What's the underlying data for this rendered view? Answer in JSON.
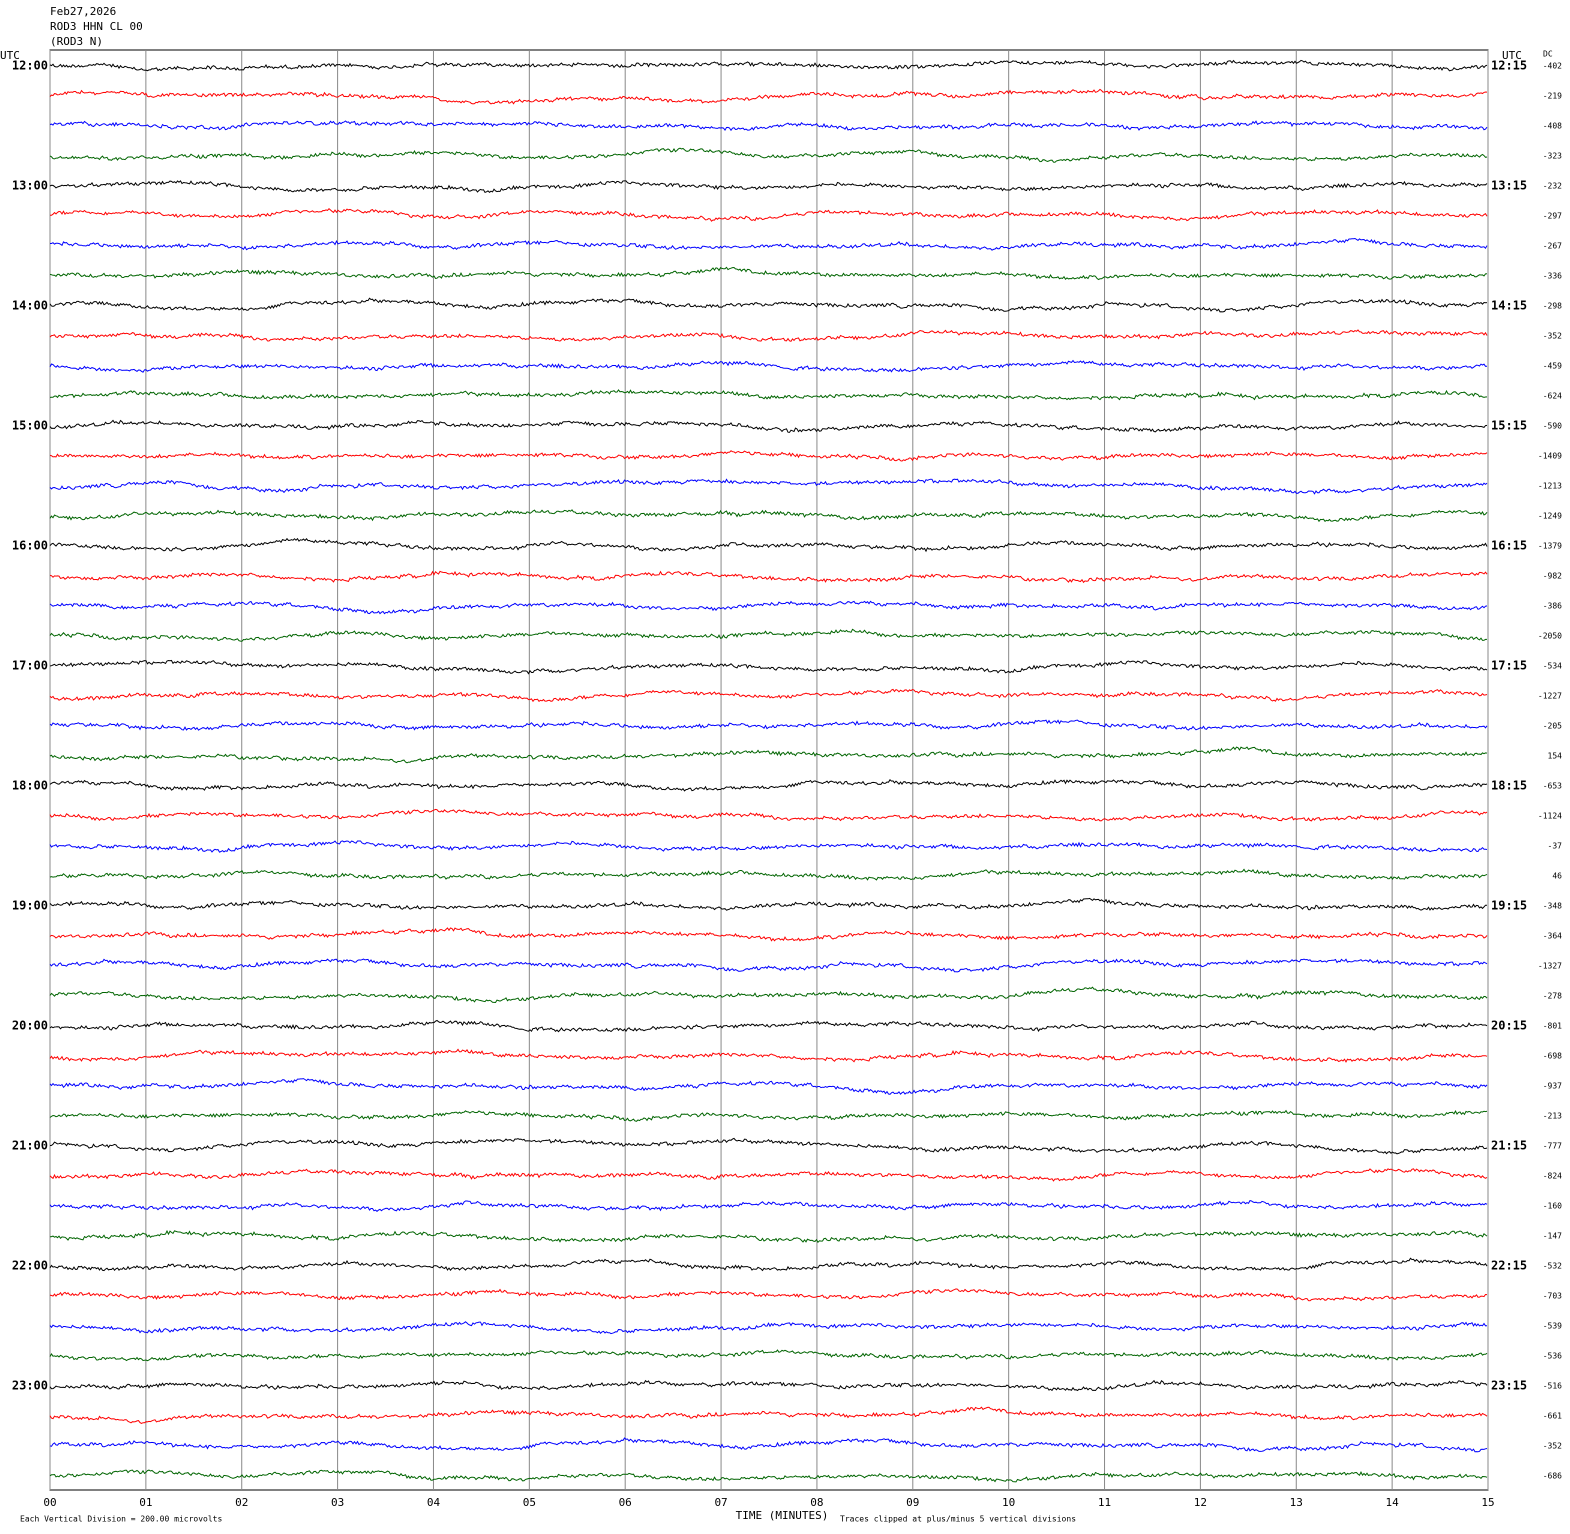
{
  "header": {
    "date": "Feb27,2026",
    "station": "ROD3 HHN CL 00",
    "component": "(ROD3 N)"
  },
  "left_axis_label": "UTC",
  "right_axis_label": "UTC",
  "offset_label": "DC",
  "left_hours": [
    "12:00",
    "13:00",
    "14:00",
    "15:00",
    "16:00",
    "17:00",
    "18:00",
    "19:00",
    "20:00",
    "21:00",
    "22:00",
    "23:00"
  ],
  "right_hours": [
    "12:15",
    "13:15",
    "14:15",
    "15:15",
    "16:15",
    "17:15",
    "18:15",
    "19:15",
    "20:15",
    "21:15",
    "22:15",
    "23:15"
  ],
  "trace_colors": [
    "#000000",
    "#ff0000",
    "#0000ff",
    "#006400"
  ],
  "dc_offsets": [
    -402,
    -219,
    -408,
    -323,
    -232,
    -297,
    -267,
    -336,
    -298,
    -352,
    -459,
    -624,
    -590,
    -1409,
    -1213,
    -1249,
    -1379,
    -982,
    -386,
    -2050,
    -534,
    -1227,
    -205,
    154,
    -653,
    -1124,
    -37,
    46,
    -348,
    -364,
    -1327,
    -278,
    -801,
    -698,
    -937,
    -213,
    -777,
    -824,
    -160,
    -147,
    -532,
    -703,
    -539,
    -536,
    -516,
    -661,
    -352,
    -686
  ],
  "x_axis": {
    "label": "TIME (MINUTES)",
    "xlim": [
      0,
      15
    ],
    "xticks": [
      {
        "value": 0,
        "label": "00"
      },
      {
        "value": 1,
        "label": "01"
      },
      {
        "value": 2,
        "label": "02"
      },
      {
        "value": 3,
        "label": "03"
      },
      {
        "value": 4,
        "label": "04"
      },
      {
        "value": 5,
        "label": "05"
      },
      {
        "value": 6,
        "label": "06"
      },
      {
        "value": 7,
        "label": "07"
      },
      {
        "value": 8,
        "label": "08"
      },
      {
        "value": 9,
        "label": "09"
      },
      {
        "value": 10,
        "label": "10"
      },
      {
        "value": 11,
        "label": "11"
      },
      {
        "value": 12,
        "label": "12"
      },
      {
        "value": 13,
        "label": "13"
      },
      {
        "value": 14,
        "label": "14"
      },
      {
        "value": 15,
        "label": "15"
      }
    ]
  },
  "footer": {
    "scale": "Each Vertical Division =  200.00 microvolts",
    "clip": "Traces clipped at plus/minus 5 vertical divisions"
  }
}
